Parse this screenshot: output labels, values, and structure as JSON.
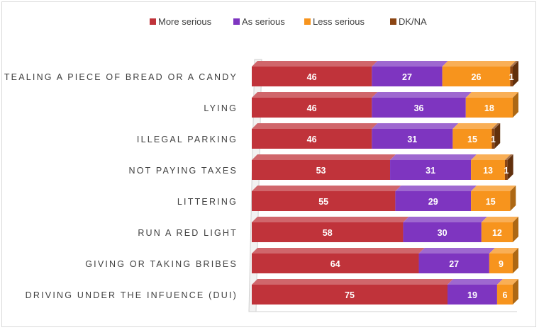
{
  "chart_data": {
    "type": "bar",
    "orientation": "horizontal",
    "stacked": true,
    "legend_position": "top",
    "grid": false,
    "title": "",
    "xlabel": "",
    "ylabel": "",
    "xlim": [
      0,
      100
    ],
    "categories": [
      "STEALING A PIECE OF BREAD OR A CANDY",
      "LYING",
      "ILLEGAL PARKING",
      "NOT PAYING TAXES",
      "LITTERING",
      "RUN A RED LIGHT",
      "GIVING OR TAKING BRIBES",
      "DRIVING UNDER THE INFUENCE (DUI)"
    ],
    "series": [
      {
        "name": "More serious",
        "color": "#C0333A",
        "values": [
          46,
          46,
          46,
          53,
          55,
          58,
          64,
          75
        ]
      },
      {
        "name": "As serious",
        "color": "#7E35C0",
        "values": [
          27,
          36,
          31,
          31,
          29,
          30,
          27,
          19
        ]
      },
      {
        "name": "Less serious",
        "color": "#F7941D",
        "values": [
          26,
          18,
          15,
          13,
          15,
          12,
          9,
          6
        ]
      },
      {
        "name": "DK/NA",
        "color": "#8B4513",
        "values": [
          1,
          null,
          1,
          1,
          null,
          null,
          null,
          null
        ]
      }
    ]
  }
}
